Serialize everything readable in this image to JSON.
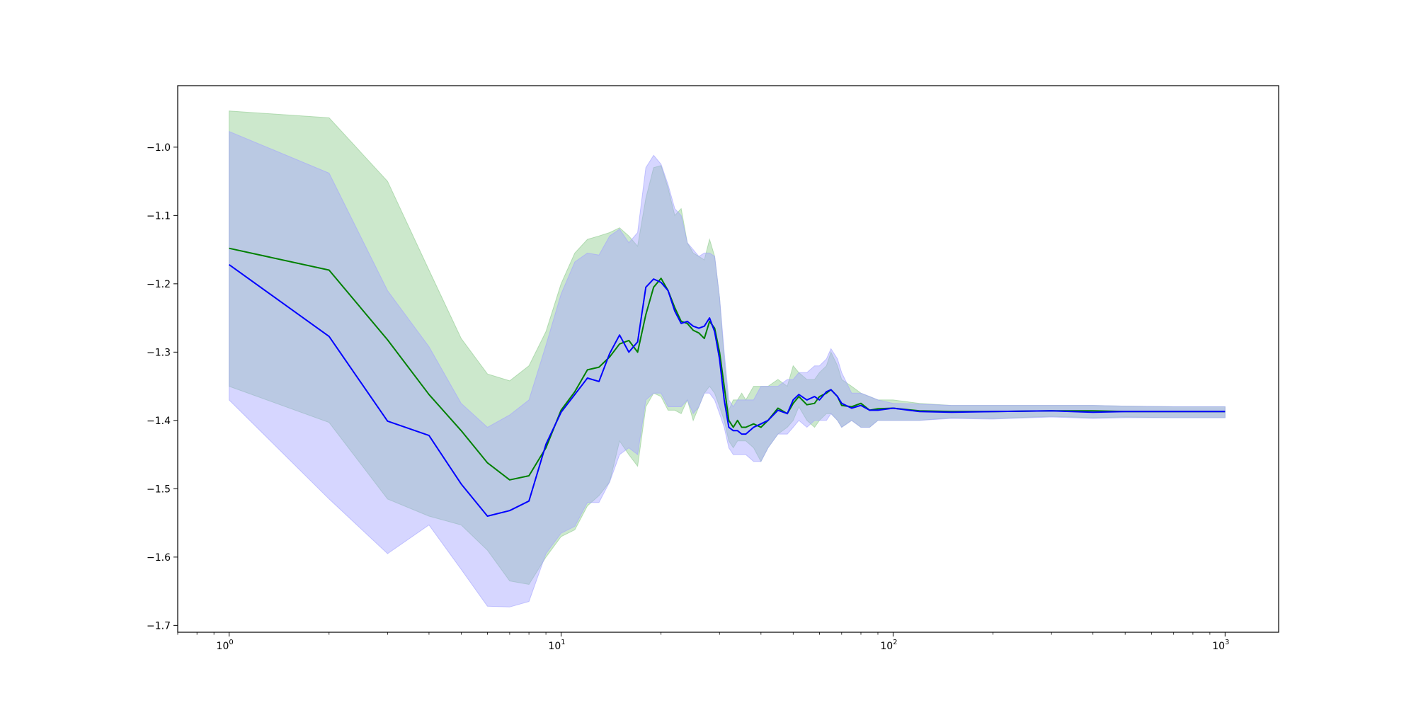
{
  "chart_data": {
    "type": "line",
    "title": "",
    "xlabel": "",
    "ylabel": "",
    "xscale": "log",
    "xlim": [
      0.7,
      1450
    ],
    "ylim": [
      -1.71,
      -0.91
    ],
    "grid": false,
    "x_ticks": [
      {
        "value": 1,
        "base": "10",
        "exp": "0"
      },
      {
        "value": 10,
        "base": "10",
        "exp": "1"
      },
      {
        "value": 100,
        "base": "10",
        "exp": "2"
      },
      {
        "value": 1000,
        "base": "10",
        "exp": "3"
      }
    ],
    "y_ticks": [
      {
        "value": -1.0,
        "label": "−1.0"
      },
      {
        "value": -1.1,
        "label": "−1.1"
      },
      {
        "value": -1.2,
        "label": "−1.2"
      },
      {
        "value": -1.3,
        "label": "−1.3"
      },
      {
        "value": -1.4,
        "label": "−1.4"
      },
      {
        "value": -1.5,
        "label": "−1.5"
      },
      {
        "value": -1.6,
        "label": "−1.6"
      },
      {
        "value": -1.7,
        "label": "−1.7"
      }
    ],
    "series": [
      {
        "color": "#008000",
        "band_color": "#8fcc8f",
        "x": [
          1,
          2,
          3,
          4,
          5,
          6,
          7,
          8,
          9,
          10,
          11,
          12,
          13,
          14,
          15,
          16,
          17,
          18,
          19,
          20,
          21,
          22,
          23,
          24,
          25,
          26,
          27,
          28,
          29,
          30,
          31,
          32,
          33,
          34,
          35,
          36,
          38,
          40,
          42,
          45,
          48,
          50,
          52,
          55,
          58,
          60,
          63,
          65,
          68,
          70,
          75,
          80,
          85,
          90,
          100,
          120,
          150,
          200,
          300,
          400,
          500,
          700,
          1000
        ],
        "y": [
          -1.148,
          -1.18,
          -1.282,
          -1.362,
          -1.415,
          -1.462,
          -1.487,
          -1.481,
          -1.44,
          -1.385,
          -1.358,
          -1.326,
          -1.322,
          -1.307,
          -1.288,
          -1.283,
          -1.3,
          -1.245,
          -1.205,
          -1.192,
          -1.21,
          -1.235,
          -1.255,
          -1.258,
          -1.268,
          -1.272,
          -1.28,
          -1.255,
          -1.265,
          -1.3,
          -1.35,
          -1.4,
          -1.41,
          -1.4,
          -1.41,
          -1.41,
          -1.405,
          -1.41,
          -1.4,
          -1.382,
          -1.39,
          -1.375,
          -1.365,
          -1.377,
          -1.375,
          -1.365,
          -1.36,
          -1.355,
          -1.365,
          -1.378,
          -1.38,
          -1.375,
          -1.385,
          -1.383,
          -1.382,
          -1.386,
          -1.387,
          -1.387,
          -1.386,
          -1.386,
          -1.387,
          -1.387,
          -1.387
        ],
        "lower": [
          -1.35,
          -1.403,
          -1.515,
          -1.54,
          -1.553,
          -1.59,
          -1.635,
          -1.64,
          -1.6,
          -1.57,
          -1.56,
          -1.525,
          -1.51,
          -1.49,
          -1.43,
          -1.45,
          -1.467,
          -1.38,
          -1.36,
          -1.365,
          -1.385,
          -1.385,
          -1.39,
          -1.37,
          -1.4,
          -1.38,
          -1.36,
          -1.35,
          -1.36,
          -1.38,
          -1.4,
          -1.43,
          -1.44,
          -1.43,
          -1.43,
          -1.43,
          -1.44,
          -1.46,
          -1.44,
          -1.42,
          -1.41,
          -1.4,
          -1.38,
          -1.4,
          -1.41,
          -1.4,
          -1.39,
          -1.39,
          -1.4,
          -1.41,
          -1.4,
          -1.41,
          -1.41,
          -1.4,
          -1.4,
          -1.4,
          -1.396,
          -1.397,
          -1.394,
          -1.396,
          -1.395,
          -1.396,
          -1.396
        ],
        "upper": [
          -0.947,
          -0.957,
          -1.05,
          -1.18,
          -1.28,
          -1.332,
          -1.342,
          -1.32,
          -1.27,
          -1.2,
          -1.155,
          -1.135,
          -1.13,
          -1.125,
          -1.118,
          -1.13,
          -1.145,
          -1.075,
          -1.03,
          -1.027,
          -1.06,
          -1.1,
          -1.09,
          -1.14,
          -1.155,
          -1.16,
          -1.165,
          -1.135,
          -1.16,
          -1.22,
          -1.31,
          -1.385,
          -1.37,
          -1.37,
          -1.36,
          -1.37,
          -1.35,
          -1.35,
          -1.35,
          -1.34,
          -1.35,
          -1.32,
          -1.33,
          -1.34,
          -1.34,
          -1.33,
          -1.32,
          -1.3,
          -1.32,
          -1.34,
          -1.35,
          -1.36,
          -1.365,
          -1.37,
          -1.37,
          -1.375,
          -1.378,
          -1.378,
          -1.378,
          -1.378,
          -1.379,
          -1.38,
          -1.38
        ]
      },
      {
        "color": "#0000ff",
        "band_color": "#a3a3ff",
        "x": [
          1,
          2,
          3,
          4,
          5,
          6,
          7,
          8,
          9,
          10,
          11,
          12,
          13,
          14,
          15,
          16,
          17,
          18,
          19,
          20,
          21,
          22,
          23,
          24,
          25,
          26,
          27,
          28,
          29,
          30,
          31,
          32,
          33,
          34,
          35,
          36,
          38,
          40,
          42,
          45,
          48,
          50,
          52,
          55,
          58,
          60,
          63,
          65,
          68,
          70,
          75,
          80,
          85,
          90,
          100,
          120,
          150,
          200,
          300,
          400,
          500,
          700,
          1000
        ],
        "y": [
          -1.172,
          -1.277,
          -1.401,
          -1.422,
          -1.493,
          -1.54,
          -1.532,
          -1.518,
          -1.435,
          -1.388,
          -1.362,
          -1.338,
          -1.343,
          -1.302,
          -1.275,
          -1.3,
          -1.285,
          -1.205,
          -1.193,
          -1.198,
          -1.21,
          -1.24,
          -1.258,
          -1.255,
          -1.262,
          -1.265,
          -1.262,
          -1.25,
          -1.27,
          -1.31,
          -1.37,
          -1.41,
          -1.415,
          -1.415,
          -1.42,
          -1.42,
          -1.41,
          -1.405,
          -1.4,
          -1.385,
          -1.39,
          -1.37,
          -1.362,
          -1.37,
          -1.365,
          -1.37,
          -1.358,
          -1.355,
          -1.365,
          -1.375,
          -1.382,
          -1.378,
          -1.385,
          -1.385,
          -1.382,
          -1.387,
          -1.388,
          -1.387,
          -1.386,
          -1.388,
          -1.387,
          -1.387,
          -1.387
        ],
        "lower": [
          -1.37,
          -1.515,
          -1.595,
          -1.553,
          -1.618,
          -1.672,
          -1.673,
          -1.665,
          -1.595,
          -1.565,
          -1.555,
          -1.52,
          -1.52,
          -1.49,
          -1.45,
          -1.44,
          -1.45,
          -1.37,
          -1.36,
          -1.36,
          -1.38,
          -1.38,
          -1.38,
          -1.37,
          -1.39,
          -1.38,
          -1.36,
          -1.36,
          -1.37,
          -1.39,
          -1.41,
          -1.44,
          -1.45,
          -1.45,
          -1.45,
          -1.45,
          -1.46,
          -1.46,
          -1.44,
          -1.42,
          -1.42,
          -1.41,
          -1.4,
          -1.41,
          -1.4,
          -1.4,
          -1.4,
          -1.39,
          -1.4,
          -1.41,
          -1.4,
          -1.41,
          -1.41,
          -1.4,
          -1.4,
          -1.4,
          -1.397,
          -1.398,
          -1.395,
          -1.397,
          -1.396,
          -1.396,
          -1.396
        ],
        "upper": [
          -0.977,
          -1.038,
          -1.21,
          -1.292,
          -1.375,
          -1.41,
          -1.392,
          -1.37,
          -1.29,
          -1.215,
          -1.168,
          -1.155,
          -1.158,
          -1.13,
          -1.12,
          -1.14,
          -1.125,
          -1.03,
          -1.012,
          -1.025,
          -1.055,
          -1.09,
          -1.1,
          -1.14,
          -1.15,
          -1.16,
          -1.155,
          -1.155,
          -1.16,
          -1.22,
          -1.3,
          -1.37,
          -1.38,
          -1.37,
          -1.37,
          -1.37,
          -1.37,
          -1.35,
          -1.35,
          -1.35,
          -1.34,
          -1.34,
          -1.33,
          -1.33,
          -1.32,
          -1.32,
          -1.31,
          -1.295,
          -1.31,
          -1.33,
          -1.36,
          -1.36,
          -1.365,
          -1.37,
          -1.375,
          -1.376,
          -1.378,
          -1.378,
          -1.378,
          -1.378,
          -1.379,
          -1.38,
          -1.38
        ]
      }
    ]
  }
}
